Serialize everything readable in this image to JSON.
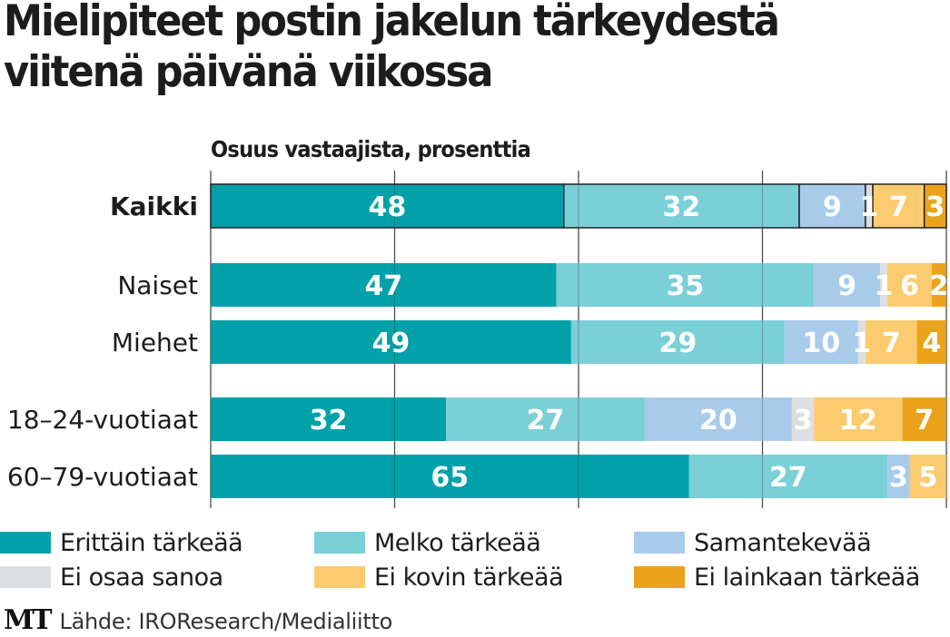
{
  "title_line1": "Mielipiteet postin jakelun tärkeydestä",
  "title_line2": "viitenä päivänä viikossa",
  "source": {
    "logo": "MT",
    "text": "Lähde: IROResearch/Medialiitto"
  },
  "chart_data": {
    "type": "bar",
    "orientation": "horizontal",
    "stacked": true,
    "title": "Mielipiteet postin jakelun tärkeydestä viitenä päivänä viikossa",
    "subtitle": "Osuus vastaajista, prosenttia",
    "xlabel": "",
    "ylabel": "",
    "xlim": [
      0,
      100
    ],
    "grid": true,
    "gridlines_at": [
      0,
      25,
      50,
      75,
      100
    ],
    "legend_position": "bottom",
    "categories": [
      "Kaikki",
      "Naiset",
      "Miehet",
      "18–24-vuotiaat",
      "60–79-vuotiaat"
    ],
    "series": [
      {
        "name": "Erittäin tärkeää",
        "color": "#00a1a9",
        "values": [
          48,
          47,
          49,
          32,
          65
        ]
      },
      {
        "name": "Melko tärkeää",
        "color": "#7bcfd6",
        "values": [
          32,
          35,
          29,
          27,
          27
        ]
      },
      {
        "name": "Samantekevää",
        "color": "#a8cbea",
        "values": [
          9,
          9,
          10,
          20,
          3
        ]
      },
      {
        "name": "Ei osaa sanoa",
        "color": "#dcdfe2",
        "values": [
          1,
          1,
          1,
          3,
          0
        ]
      },
      {
        "name": "Ei kovin tärkeää",
        "color": "#fbcb6f",
        "values": [
          7,
          6,
          7,
          12,
          5
        ]
      },
      {
        "name": "Ei lainkaan tärkeää",
        "color": "#eca31c",
        "values": [
          3,
          2,
          4,
          7,
          0
        ]
      }
    ],
    "highlighted_category": "Kaikki"
  }
}
